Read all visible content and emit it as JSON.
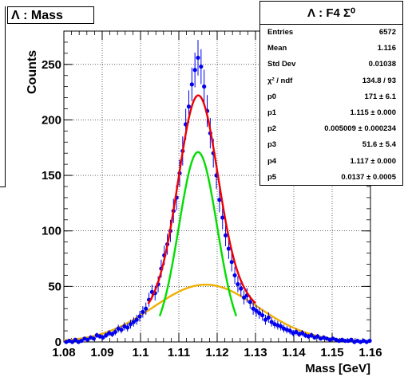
{
  "panel_title": "Λ : Mass",
  "stats": {
    "title": "Λ : F4 Σ⁰",
    "rows": [
      {
        "label": "Entries",
        "value": "6572"
      },
      {
        "label": "Mean",
        "value": "1.116"
      },
      {
        "label": "Std Dev",
        "value": "0.01038"
      },
      {
        "label": "χ² / ndf",
        "value": "134.8 / 93"
      },
      {
        "label": "p0",
        "value": "171 ± 6.1"
      },
      {
        "label": "p1",
        "value": "1.115 ± 0.000"
      },
      {
        "label": "p2",
        "value": "0.005009 ± 0.000234"
      },
      {
        "label": "p3",
        "value": "51.6 ± 5.4"
      },
      {
        "label": "p4",
        "value": "1.117 ± 0.000"
      },
      {
        "label": "p5",
        "value": "0.0137 ± 0.0005"
      }
    ]
  },
  "chart_data": {
    "type": "scatter",
    "xlabel": "Mass [GeV]",
    "ylabel": "Counts",
    "xlim": [
      1.08,
      1.16
    ],
    "ylim": [
      0,
      280
    ],
    "x_ticks": [
      "1.08",
      "1.09",
      "1.1",
      "1.11",
      "1.12",
      "1.13",
      "1.14",
      "1.15",
      "1.16"
    ],
    "y_ticks": [
      "0",
      "50",
      "100",
      "150",
      "200",
      "250"
    ],
    "grid": true,
    "colors": {
      "points": "#0000ee",
      "total_fit": "#ee0000",
      "signal": "#00dd00",
      "background": "#f0b000"
    },
    "points": {
      "x": [
        1.0806,
        1.0814,
        1.0822,
        1.083,
        1.0838,
        1.0846,
        1.0854,
        1.0862,
        1.087,
        1.0878,
        1.0886,
        1.0894,
        1.0902,
        1.091,
        1.0918,
        1.0926,
        1.0934,
        1.0942,
        1.095,
        1.0958,
        1.0966,
        1.0974,
        1.0982,
        1.099,
        1.0998,
        1.1006,
        1.1014,
        1.1022,
        1.103,
        1.1038,
        1.1046,
        1.1054,
        1.1062,
        1.107,
        1.1078,
        1.1086,
        1.1094,
        1.1102,
        1.111,
        1.1118,
        1.1126,
        1.1134,
        1.1142,
        1.115,
        1.1158,
        1.1166,
        1.1174,
        1.1182,
        1.119,
        1.1198,
        1.1206,
        1.1214,
        1.1222,
        1.123,
        1.1238,
        1.1246,
        1.1254,
        1.1262,
        1.127,
        1.1278,
        1.1286,
        1.1294,
        1.1302,
        1.131,
        1.1318,
        1.1326,
        1.1334,
        1.1342,
        1.135,
        1.1358,
        1.1366,
        1.1374,
        1.1382,
        1.139,
        1.1398,
        1.1406,
        1.1414,
        1.1422,
        1.143,
        1.1438,
        1.1446,
        1.1454,
        1.1462,
        1.147,
        1.1478,
        1.1486,
        1.1494,
        1.1502,
        1.151,
        1.1518,
        1.1526,
        1.1534,
        1.1542,
        1.155,
        1.1558,
        1.1566,
        1.1574,
        1.1582,
        1.159,
        1.1598
      ],
      "y": [
        0,
        1,
        0,
        2,
        0,
        1,
        3,
        2,
        4,
        3,
        6,
        5,
        4,
        6,
        8,
        7,
        9,
        12,
        11,
        14,
        13,
        16,
        18,
        20,
        23,
        27,
        30,
        38,
        45,
        44,
        52,
        66,
        78,
        88,
        100,
        118,
        130,
        152,
        172,
        196,
        212,
        232,
        245,
        256,
        248,
        230,
        208,
        188,
        170,
        150,
        128,
        112,
        96,
        84,
        72,
        60,
        52,
        48,
        40,
        42,
        36,
        30,
        28,
        26,
        24,
        20,
        22,
        18,
        16,
        15,
        14,
        12,
        11,
        10,
        8,
        9,
        7,
        8,
        6,
        5,
        6,
        4,
        5,
        3,
        4,
        3,
        2,
        3,
        2,
        1,
        2,
        1,
        1,
        2,
        0,
        1,
        0,
        1,
        0,
        1
      ],
      "err": [
        1,
        1,
        1,
        1.4,
        1,
        1,
        1.7,
        1.4,
        2,
        1.7,
        2.4,
        2.2,
        2,
        2.4,
        2.8,
        2.6,
        3,
        3.5,
        3.3,
        3.7,
        3.6,
        4,
        4.2,
        4.5,
        4.8,
        5.2,
        5.5,
        6.2,
        6.7,
        6.6,
        7.2,
        8.1,
        8.8,
        9.4,
        10,
        10.9,
        11.4,
        12.3,
        13.1,
        14,
        14.6,
        15.2,
        15.7,
        16,
        15.7,
        15.2,
        14.4,
        13.7,
        13,
        12.2,
        11.3,
        10.6,
        9.8,
        9.2,
        8.5,
        7.7,
        7.2,
        6.9,
        6.3,
        6.5,
        6,
        5.5,
        5.3,
        5.1,
        4.9,
        4.5,
        4.7,
        4.2,
        4,
        3.9,
        3.7,
        3.5,
        3.3,
        3.2,
        2.8,
        3,
        2.6,
        2.8,
        2.4,
        2.2,
        2.4,
        2,
        2.2,
        1.7,
        2,
        1.7,
        1.4,
        1.7,
        1.4,
        1,
        1.4,
        1,
        1,
        1.4,
        1,
        1,
        1,
        1,
        1,
        1
      ]
    },
    "fits": {
      "signal": {
        "amplitude": 171,
        "mean": 1.115,
        "sigma": 0.005009,
        "x_range": [
          1.105,
          1.125
        ]
      },
      "background": {
        "amplitude": 51.6,
        "mean": 1.117,
        "sigma": 0.0137,
        "x_range": [
          1.08,
          1.16
        ]
      },
      "total": {
        "x_range": [
          1.08,
          1.16
        ]
      }
    }
  }
}
